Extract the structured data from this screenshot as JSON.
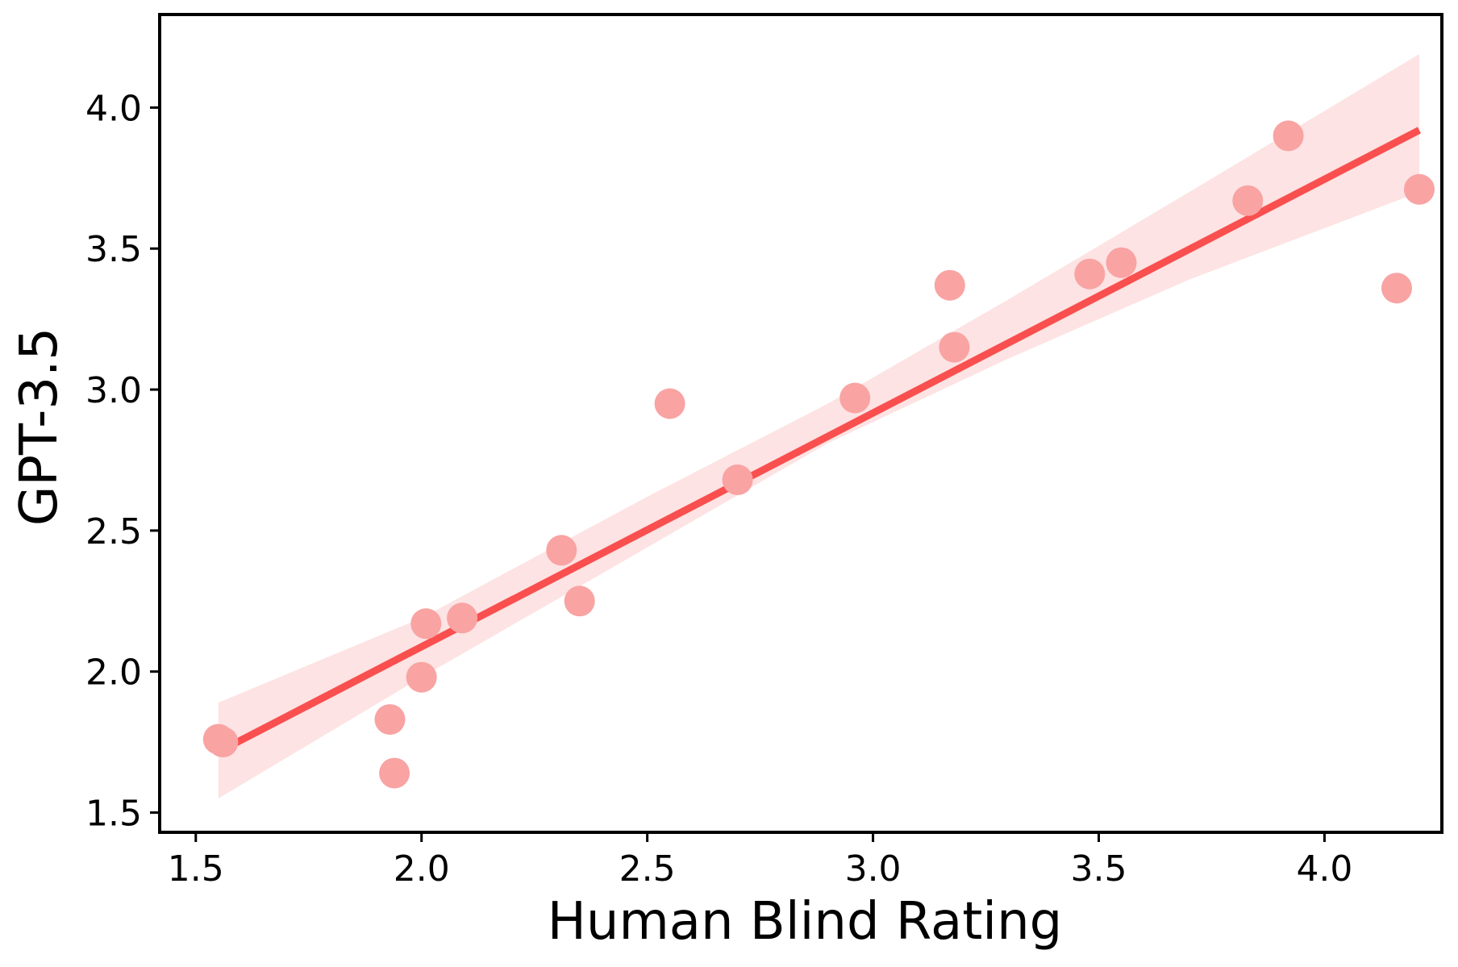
{
  "chart_data": {
    "type": "scatter",
    "title": "",
    "xlabel": "Human Blind Rating",
    "ylabel": "GPT-3.5",
    "xlim": [
      1.42,
      4.26
    ],
    "ylim": [
      1.43,
      4.33
    ],
    "xticks": [
      1.5,
      2.0,
      2.5,
      3.0,
      3.5,
      4.0
    ],
    "xtick_labels": [
      "1.5",
      "2.0",
      "2.5",
      "3.0",
      "3.5",
      "4.0"
    ],
    "yticks": [
      1.5,
      2.0,
      2.5,
      3.0,
      3.5,
      4.0
    ],
    "ytick_labels": [
      "1.5",
      "2.0",
      "2.5",
      "3.0",
      "3.5",
      "4.0"
    ],
    "grid": false,
    "legend": "none",
    "series": [
      {
        "type": "scatter",
        "color": "#f9a3a3",
        "points": [
          {
            "x": 1.55,
            "y": 1.76
          },
          {
            "x": 1.56,
            "y": 1.75
          },
          {
            "x": 1.93,
            "y": 1.83
          },
          {
            "x": 1.94,
            "y": 1.64
          },
          {
            "x": 2.0,
            "y": 1.98
          },
          {
            "x": 2.01,
            "y": 2.17
          },
          {
            "x": 2.09,
            "y": 2.19
          },
          {
            "x": 2.31,
            "y": 2.43
          },
          {
            "x": 2.35,
            "y": 2.25
          },
          {
            "x": 2.55,
            "y": 2.95
          },
          {
            "x": 2.7,
            "y": 2.68
          },
          {
            "x": 2.96,
            "y": 2.97
          },
          {
            "x": 3.17,
            "y": 3.37
          },
          {
            "x": 3.18,
            "y": 3.15
          },
          {
            "x": 3.48,
            "y": 3.41
          },
          {
            "x": 3.55,
            "y": 3.45
          },
          {
            "x": 3.83,
            "y": 3.67
          },
          {
            "x": 3.92,
            "y": 3.9
          },
          {
            "x": 4.16,
            "y": 3.36
          },
          {
            "x": 4.21,
            "y": 3.71
          }
        ]
      },
      {
        "type": "regression-line",
        "color": "#f94f4f",
        "x": [
          1.55,
          4.21
        ],
        "y": [
          1.715,
          3.92
        ]
      },
      {
        "type": "confidence-band",
        "color": "#fde0e0",
        "x": [
          1.55,
          2.0,
          2.5,
          2.9,
          3.3,
          3.7,
          4.21
        ],
        "upper": [
          1.89,
          2.19,
          2.62,
          2.95,
          3.32,
          3.7,
          4.19
        ],
        "lower": [
          1.55,
          1.98,
          2.44,
          2.81,
          3.11,
          3.39,
          3.7
        ]
      }
    ]
  }
}
